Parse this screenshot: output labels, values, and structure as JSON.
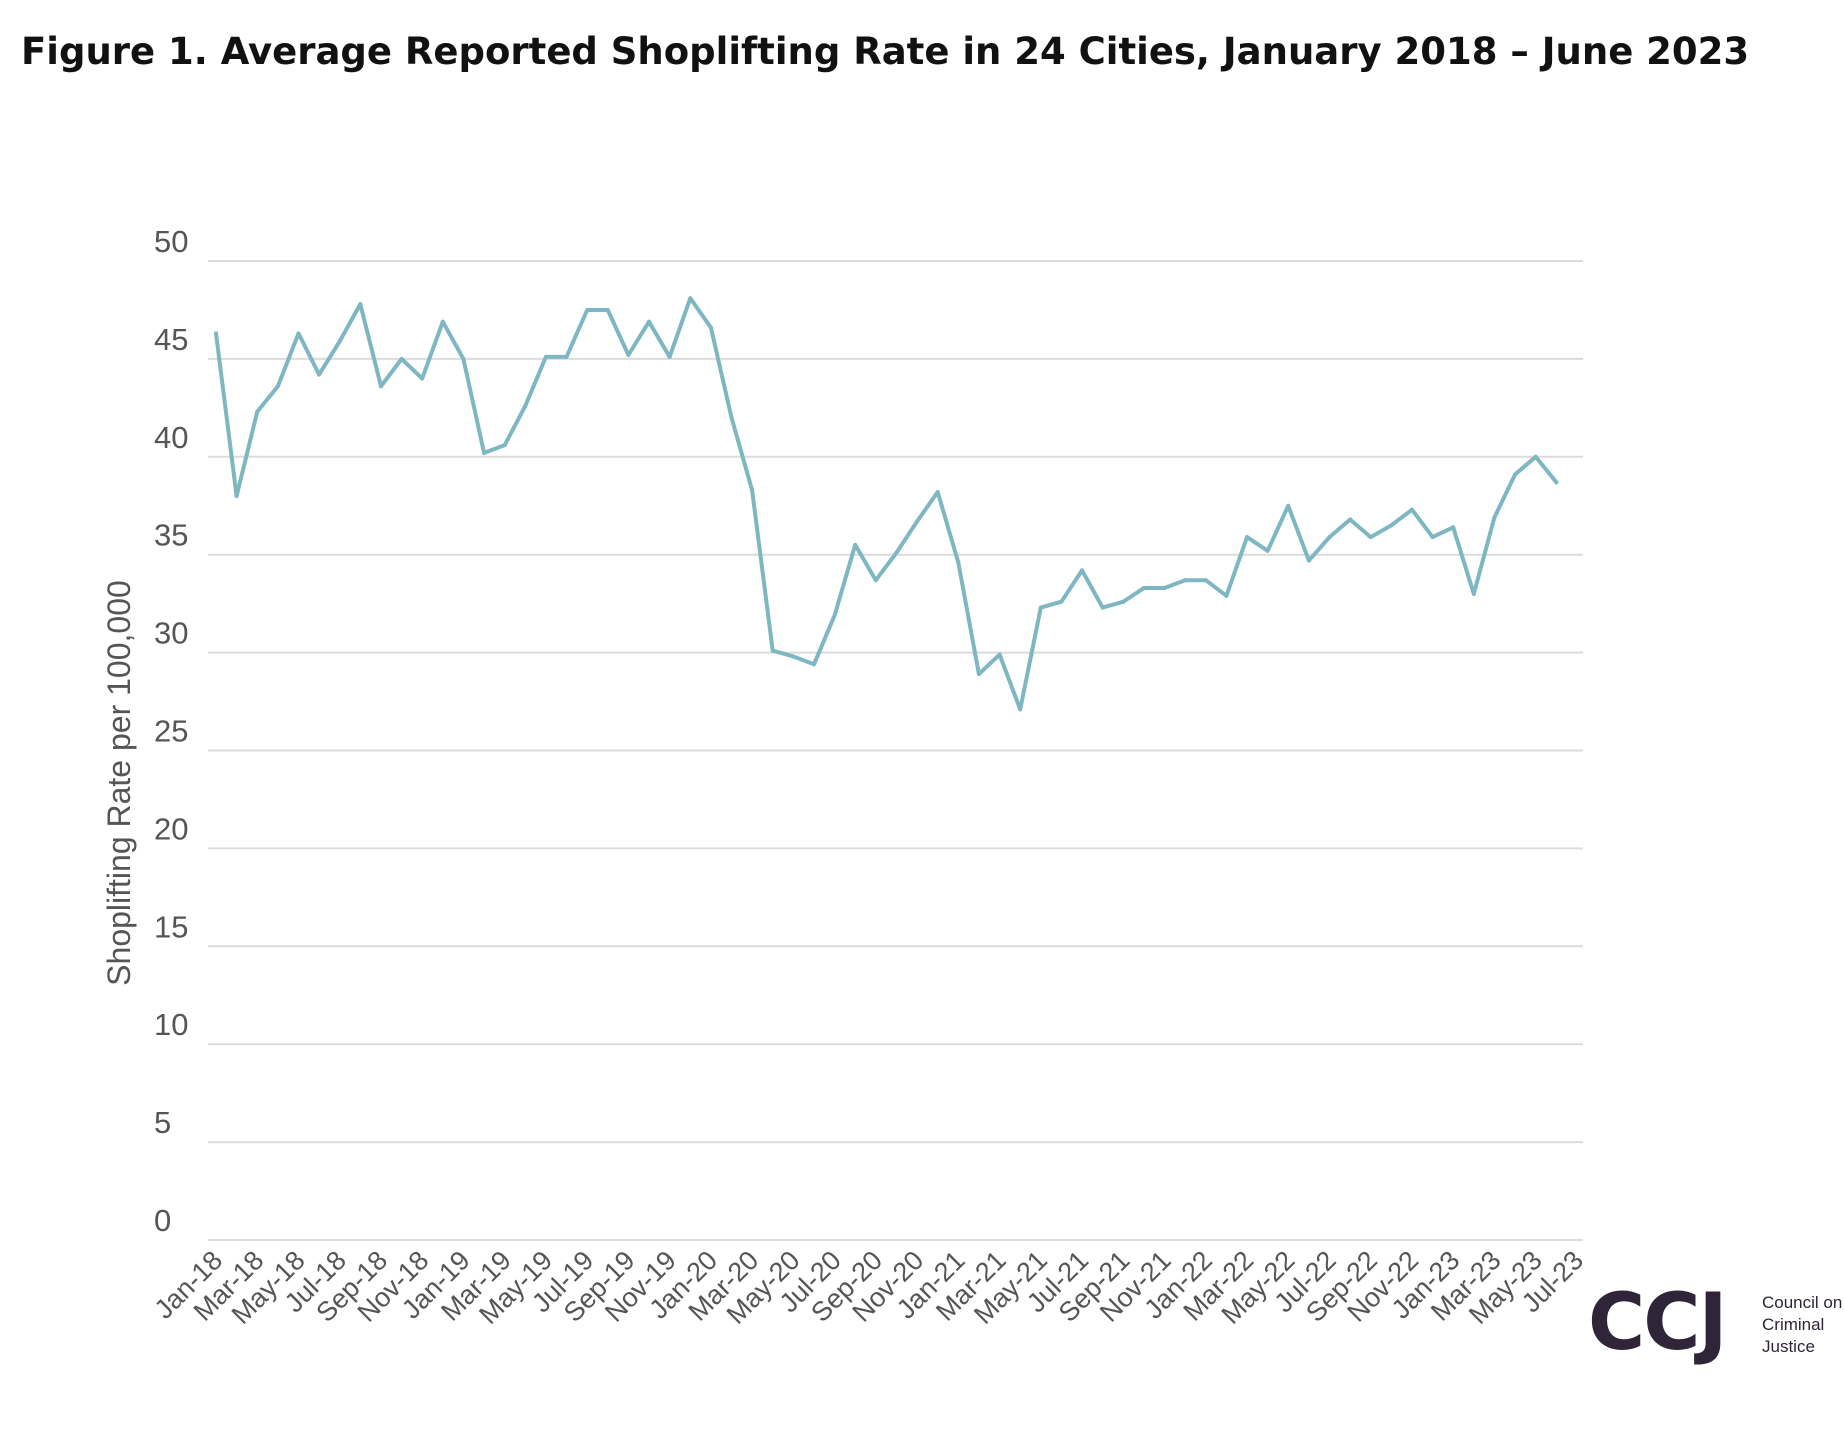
{
  "chart_data": {
    "type": "line",
    "title": "Figure 1. Average Reported Shoplifting Rate in 24 Cities, January 2018 – June 2023",
    "ylabel": "Shoplifting Rate per 100,000",
    "xlabel": "",
    "ylim": [
      0,
      50
    ],
    "yticks": [
      "0",
      "5",
      "10",
      "15",
      "20",
      "25",
      "30",
      "35",
      "40",
      "45",
      "50"
    ],
    "xtick_labels": [
      "Jan-18",
      "Mar-18",
      "May-18",
      "Jul-18",
      "Sep-18",
      "Nov-18",
      "Jan-19",
      "Mar-19",
      "May-19",
      "Jul-19",
      "Sep-19",
      "Nov-19",
      "Jan-20",
      "Mar-20",
      "May-20",
      "Jul-20",
      "Sep-20",
      "Nov-20",
      "Jan-21",
      "Mar-21",
      "May-21",
      "Jul-21",
      "Sep-21",
      "Nov-21",
      "Jan-22",
      "Mar-22",
      "May-22",
      "Jul-22",
      "Sep-22",
      "Nov-22",
      "Jan-23",
      "Mar-23",
      "May-23",
      "Jul-23"
    ],
    "grid": true,
    "line_color": "#7eb6c2",
    "series": [
      {
        "name": "",
        "x": [
          "Jan-18",
          "Feb-18",
          "Mar-18",
          "Apr-18",
          "May-18",
          "Jun-18",
          "Jul-18",
          "Aug-18",
          "Sep-18",
          "Oct-18",
          "Nov-18",
          "Dec-18",
          "Jan-19",
          "Feb-19",
          "Mar-19",
          "Apr-19",
          "May-19",
          "Jun-19",
          "Jul-19",
          "Aug-19",
          "Sep-19",
          "Oct-19",
          "Nov-19",
          "Dec-19",
          "Jan-20",
          "Feb-20",
          "Mar-20",
          "Apr-20",
          "May-20",
          "Jun-20",
          "Jul-20",
          "Aug-20",
          "Sep-20",
          "Oct-20",
          "Nov-20",
          "Dec-20",
          "Jan-21",
          "Feb-21",
          "Mar-21",
          "Apr-21",
          "May-21",
          "Jun-21",
          "Jul-21",
          "Aug-21",
          "Sep-21",
          "Oct-21",
          "Nov-21",
          "Dec-21",
          "Jan-22",
          "Feb-22",
          "Mar-22",
          "Apr-22",
          "May-22",
          "Jun-22",
          "Jul-22",
          "Aug-22",
          "Sep-22",
          "Oct-22",
          "Nov-22",
          "Dec-22",
          "Jan-23",
          "Feb-23",
          "Mar-23",
          "Apr-23",
          "May-23",
          "Jun-23"
        ],
        "values": [
          46.3,
          38.0,
          42.3,
          43.6,
          46.3,
          44.2,
          45.9,
          47.8,
          43.6,
          45.0,
          44.0,
          46.9,
          45.0,
          40.2,
          40.6,
          42.6,
          45.1,
          45.1,
          47.5,
          47.5,
          45.2,
          46.9,
          45.1,
          48.1,
          46.6,
          42.0,
          38.3,
          30.1,
          29.8,
          29.4,
          31.9,
          35.5,
          33.7,
          35.1,
          36.7,
          38.2,
          34.6,
          28.9,
          29.9,
          27.1,
          32.3,
          32.6,
          34.2,
          32.3,
          32.6,
          33.3,
          33.3,
          33.7,
          33.7,
          32.9,
          35.9,
          35.2,
          37.5,
          34.7,
          35.9,
          36.8,
          35.9,
          36.5,
          37.3,
          35.9,
          36.4,
          33.0,
          36.9,
          39.1,
          40.0,
          38.7
        ]
      }
    ]
  },
  "logo": {
    "mark": "CCJ",
    "text": "Council on\nCriminal\nJustice",
    "color": "#2f2438"
  }
}
